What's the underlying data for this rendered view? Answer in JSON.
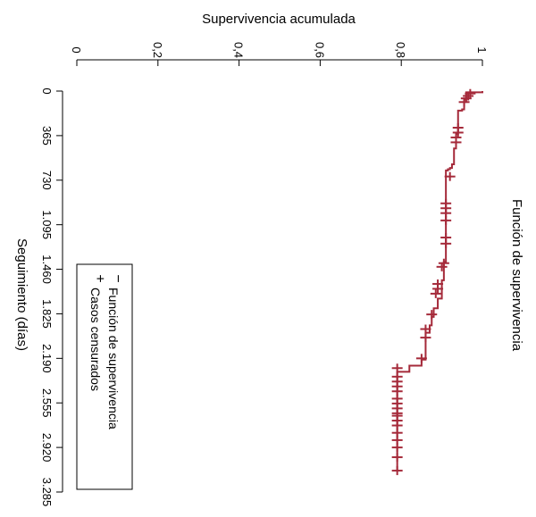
{
  "chart_data": {
    "type": "line",
    "title": "Función de supervivencia",
    "xlabel": "Seguimiento (días)",
    "ylabel": "Supervivencia acumulada",
    "orientation": "rotated-90-clockwise",
    "grid": false,
    "xlim": [
      0,
      3285
    ],
    "ylim": [
      0,
      1
    ],
    "x_ticks": [
      0,
      365,
      730,
      1095,
      1460,
      1825,
      2190,
      2555,
      2920,
      3285
    ],
    "x_tick_labels": [
      "0",
      "365",
      "730",
      "1.095",
      "1.460",
      "1.825",
      "2.190",
      "2.555",
      "2.920",
      "3.285"
    ],
    "y_ticks": [
      0,
      0.2,
      0.4,
      0.6,
      0.8,
      1
    ],
    "y_tick_labels": [
      "0",
      "0,2",
      "0,4",
      "0,6",
      "0,8",
      "1"
    ],
    "legend": {
      "position": "bottom-left",
      "entries": [
        {
          "symbol": "−",
          "label": "Función de supervivencia"
        },
        {
          "symbol": "+",
          "label": "Casos censurados"
        }
      ]
    },
    "colors": {
      "series": "#A52A3A",
      "axis": "#000000"
    },
    "series": [
      {
        "name": "Función de supervivencia",
        "kind": "step",
        "points": [
          [
            0,
            1.0
          ],
          [
            10,
            0.96
          ],
          [
            70,
            0.955
          ],
          [
            150,
            0.95
          ],
          [
            160,
            0.94
          ],
          [
            350,
            0.935
          ],
          [
            470,
            0.93
          ],
          [
            600,
            0.925
          ],
          [
            630,
            0.92
          ],
          [
            640,
            0.915
          ],
          [
            650,
            0.91
          ],
          [
            1400,
            0.905
          ],
          [
            1550,
            0.9
          ],
          [
            1700,
            0.89
          ],
          [
            1780,
            0.88
          ],
          [
            1850,
            0.875
          ],
          [
            1920,
            0.87
          ],
          [
            1980,
            0.86
          ],
          [
            2200,
            0.85
          ],
          [
            2250,
            0.82
          ],
          [
            2300,
            0.79
          ]
        ],
        "end_x": 3110
      },
      {
        "name": "Casos censurados",
        "kind": "scatter",
        "points": [
          [
            20,
            0.97
          ],
          [
            40,
            0.965
          ],
          [
            60,
            0.96
          ],
          [
            90,
            0.955
          ],
          [
            300,
            0.94
          ],
          [
            340,
            0.94
          ],
          [
            380,
            0.935
          ],
          [
            420,
            0.935
          ],
          [
            700,
            0.92
          ],
          [
            920,
            0.91
          ],
          [
            960,
            0.91
          ],
          [
            1000,
            0.91
          ],
          [
            1060,
            0.91
          ],
          [
            1200,
            0.91
          ],
          [
            1250,
            0.91
          ],
          [
            1410,
            0.905
          ],
          [
            1440,
            0.9
          ],
          [
            1580,
            0.89
          ],
          [
            1620,
            0.89
          ],
          [
            1660,
            0.885
          ],
          [
            1830,
            0.875
          ],
          [
            1950,
            0.86
          ],
          [
            2020,
            0.86
          ],
          [
            2190,
            0.85
          ],
          [
            2270,
            0.79
          ],
          [
            2340,
            0.79
          ],
          [
            2380,
            0.79
          ],
          [
            2420,
            0.79
          ],
          [
            2460,
            0.79
          ],
          [
            2520,
            0.79
          ],
          [
            2560,
            0.79
          ],
          [
            2600,
            0.79
          ],
          [
            2640,
            0.79
          ],
          [
            2660,
            0.79
          ],
          [
            2700,
            0.79
          ],
          [
            2740,
            0.79
          ],
          [
            2800,
            0.79
          ],
          [
            2860,
            0.79
          ],
          [
            2920,
            0.79
          ],
          [
            3000,
            0.79
          ],
          [
            3110,
            0.79
          ]
        ]
      }
    ]
  }
}
